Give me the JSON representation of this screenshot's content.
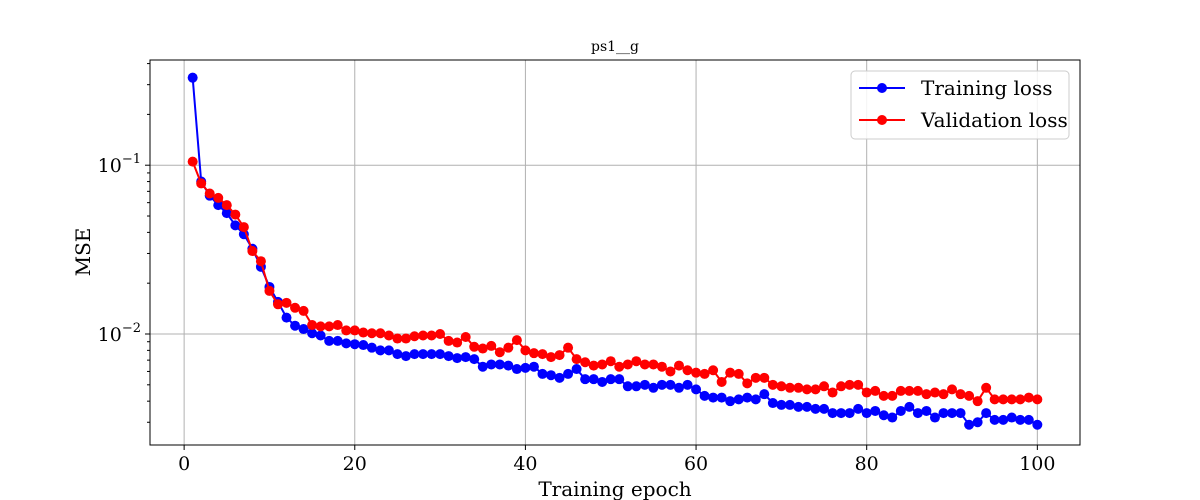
{
  "chart_data": {
    "type": "line",
    "title": "ps1__g",
    "xlabel": "Training epoch",
    "ylabel": "MSE",
    "xlim": [
      -4,
      105
    ],
    "ylim": [
      0.0022,
      0.42
    ],
    "yscale": "log",
    "x_ticks": [
      0,
      20,
      40,
      60,
      80,
      100
    ],
    "x_tick_labels": [
      "0",
      "20",
      "40",
      "60",
      "80",
      "100"
    ],
    "y_ticks": [
      0.01,
      0.1
    ],
    "y_tick_labels": [
      {
        "base": "10",
        "exp": "−2"
      },
      {
        "base": "10",
        "exp": "−1"
      }
    ],
    "grid": true,
    "legend_position": "top-right",
    "x": [
      1,
      2,
      3,
      4,
      5,
      6,
      7,
      8,
      9,
      10,
      11,
      12,
      13,
      14,
      15,
      16,
      17,
      18,
      19,
      20,
      21,
      22,
      23,
      24,
      25,
      26,
      27,
      28,
      29,
      30,
      31,
      32,
      33,
      34,
      35,
      36,
      37,
      38,
      39,
      40,
      41,
      42,
      43,
      44,
      45,
      46,
      47,
      48,
      49,
      50,
      51,
      52,
      53,
      54,
      55,
      56,
      57,
      58,
      59,
      60,
      61,
      62,
      63,
      64,
      65,
      66,
      67,
      68,
      69,
      70,
      71,
      72,
      73,
      74,
      75,
      76,
      77,
      78,
      79,
      80,
      81,
      82,
      83,
      84,
      85,
      86,
      87,
      88,
      89,
      90,
      91,
      92,
      93,
      94,
      95,
      96,
      97,
      98,
      99,
      100
    ],
    "series": [
      {
        "name": "Training loss",
        "color": "#0000ff",
        "values": [
          0.33,
          0.08,
          0.066,
          0.058,
          0.052,
          0.044,
          0.039,
          0.032,
          0.025,
          0.019,
          0.0155,
          0.0125,
          0.0112,
          0.0107,
          0.0101,
          0.0098,
          0.0091,
          0.0091,
          0.0088,
          0.0087,
          0.0086,
          0.0083,
          0.008,
          0.008,
          0.0076,
          0.0074,
          0.0076,
          0.0076,
          0.0076,
          0.0076,
          0.0074,
          0.0072,
          0.0073,
          0.0071,
          0.0064,
          0.0066,
          0.0066,
          0.0065,
          0.0062,
          0.0063,
          0.0064,
          0.0058,
          0.0057,
          0.0055,
          0.0058,
          0.0062,
          0.0054,
          0.0054,
          0.0052,
          0.0054,
          0.0054,
          0.0049,
          0.0049,
          0.005,
          0.0048,
          0.005,
          0.005,
          0.0048,
          0.005,
          0.0047,
          0.0043,
          0.0042,
          0.0042,
          0.004,
          0.0041,
          0.0042,
          0.0041,
          0.0044,
          0.0039,
          0.0038,
          0.0038,
          0.0037,
          0.0037,
          0.0036,
          0.0036,
          0.0034,
          0.0034,
          0.0034,
          0.0036,
          0.0034,
          0.0035,
          0.0033,
          0.0032,
          0.0035,
          0.0037,
          0.0034,
          0.0035,
          0.0032,
          0.0034,
          0.0034,
          0.0034,
          0.0029,
          0.003,
          0.0034,
          0.0031,
          0.0031,
          0.0032,
          0.0031,
          0.0031,
          0.0029
        ]
      },
      {
        "name": "Validation loss",
        "color": "#ff0000",
        "values": [
          0.105,
          0.078,
          0.068,
          0.064,
          0.058,
          0.051,
          0.043,
          0.031,
          0.027,
          0.018,
          0.015,
          0.0153,
          0.0143,
          0.0137,
          0.0113,
          0.0111,
          0.0111,
          0.0113,
          0.0105,
          0.0105,
          0.0102,
          0.0101,
          0.0101,
          0.0098,
          0.0094,
          0.0094,
          0.0097,
          0.0098,
          0.0098,
          0.01,
          0.0091,
          0.0089,
          0.0096,
          0.0084,
          0.0082,
          0.0085,
          0.0078,
          0.0083,
          0.0092,
          0.008,
          0.0077,
          0.0076,
          0.0073,
          0.0075,
          0.0083,
          0.0071,
          0.0068,
          0.0065,
          0.0066,
          0.0069,
          0.0064,
          0.0066,
          0.0069,
          0.0066,
          0.0066,
          0.0064,
          0.006,
          0.0065,
          0.0061,
          0.0059,
          0.0058,
          0.0061,
          0.0052,
          0.0059,
          0.0058,
          0.0051,
          0.0055,
          0.0055,
          0.005,
          0.0049,
          0.0048,
          0.0048,
          0.0047,
          0.0047,
          0.0049,
          0.0045,
          0.0049,
          0.005,
          0.005,
          0.0045,
          0.0046,
          0.0043,
          0.0043,
          0.0046,
          0.0046,
          0.0046,
          0.0044,
          0.0045,
          0.0044,
          0.0047,
          0.0044,
          0.0043,
          0.004,
          0.0048,
          0.0041,
          0.0041,
          0.0041,
          0.0041,
          0.0042,
          0.0041
        ]
      }
    ]
  }
}
